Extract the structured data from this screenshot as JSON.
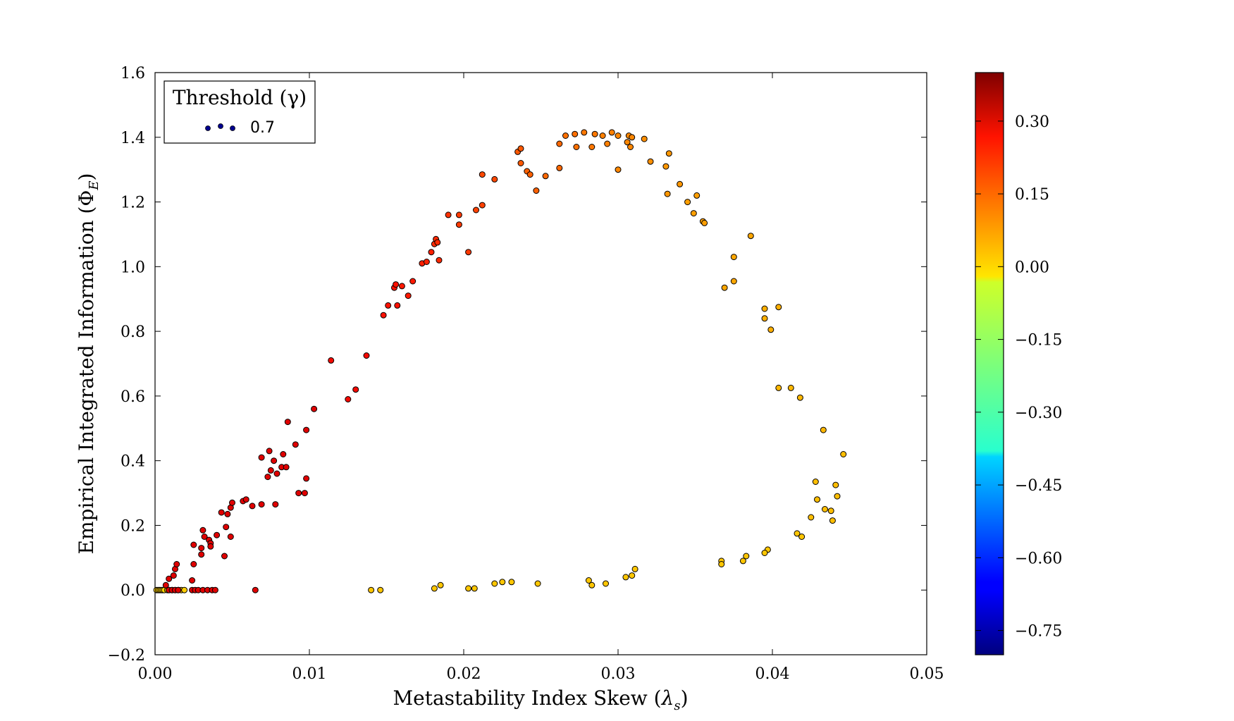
{
  "chart_data": {
    "type": "scatter",
    "xlabel_main": "Metastability Index Skew (",
    "xlabel_symbol": "λ",
    "xlabel_sub": "s",
    "xlabel_close": ")",
    "ylabel_main": "Empirical Integrated Information (",
    "ylabel_symbol": "Φ",
    "ylabel_sub": "E",
    "ylabel_close": ")",
    "xlim": [
      0.0,
      0.05
    ],
    "ylim": [
      -0.2,
      1.6
    ],
    "x_ticks": [
      "0.00",
      "0.01",
      "0.02",
      "0.03",
      "0.04",
      "0.05"
    ],
    "y_ticks": [
      "−0.2",
      "0.0",
      "0.2",
      "0.4",
      "0.6",
      "0.8",
      "1.0",
      "1.2",
      "1.4",
      "1.6"
    ],
    "grid": false,
    "legend": {
      "placement": "top-left",
      "title": "Threshold (γ)",
      "entries": [
        {
          "label": "0.7",
          "color": "#00008f"
        }
      ]
    },
    "colorbar": {
      "range": [
        -0.8,
        0.4
      ],
      "ticks": [
        "0.30",
        "0.15",
        "0.00",
        "−0.15",
        "−0.30",
        "−0.45",
        "−0.60",
        "−0.75"
      ],
      "tick_values": [
        0.3,
        0.15,
        0.0,
        -0.15,
        -0.3,
        -0.45,
        -0.6,
        -0.75
      ],
      "colormap": "jet"
    },
    "series": [
      {
        "points": [
          [
            0.0001,
            0.0,
            0.03
          ],
          [
            0.0002,
            0.0,
            0.02
          ],
          [
            0.0003,
            0.0,
            0.04
          ],
          [
            0.0004,
            0.0,
            0.01
          ],
          [
            0.0005,
            0.0,
            0.03
          ],
          [
            0.0006,
            0.0,
            0.02
          ],
          [
            0.0008,
            0.0,
            0.05
          ],
          [
            0.0009,
            0.0,
            0.02
          ],
          [
            0.0011,
            0.0,
            0.04
          ],
          [
            0.0013,
            0.0,
            0.03
          ],
          [
            0.0015,
            0.0,
            0.05
          ],
          [
            0.0017,
            0.0,
            0.04
          ],
          [
            0.0019,
            0.0,
            0.03
          ],
          [
            0.0009,
            0.0,
            0.3
          ],
          [
            0.0011,
            0.0,
            0.3
          ],
          [
            0.0013,
            0.0,
            0.3
          ],
          [
            0.0015,
            0.0,
            0.3
          ],
          [
            0.0024,
            0.0,
            0.3
          ],
          [
            0.0026,
            0.0,
            0.3
          ],
          [
            0.0028,
            0.0,
            0.3
          ],
          [
            0.0031,
            0.0,
            0.3
          ],
          [
            0.0034,
            0.0,
            0.3
          ],
          [
            0.0037,
            0.0,
            0.3
          ],
          [
            0.0039,
            0.0,
            0.3
          ],
          [
            0.0065,
            0.0,
            0.3
          ],
          [
            0.0007,
            0.015,
            0.3
          ],
          [
            0.0009,
            0.035,
            0.3
          ],
          [
            0.0012,
            0.045,
            0.3
          ],
          [
            0.0013,
            0.065,
            0.3
          ],
          [
            0.0014,
            0.08,
            0.3
          ],
          [
            0.0024,
            0.03,
            0.3
          ],
          [
            0.0025,
            0.08,
            0.3
          ],
          [
            0.0025,
            0.14,
            0.3
          ],
          [
            0.003,
            0.11,
            0.3
          ],
          [
            0.003,
            0.13,
            0.3
          ],
          [
            0.0031,
            0.185,
            0.3
          ],
          [
            0.0032,
            0.165,
            0.3
          ],
          [
            0.0035,
            0.155,
            0.3
          ],
          [
            0.0036,
            0.145,
            0.3
          ],
          [
            0.0036,
            0.135,
            0.3
          ],
          [
            0.004,
            0.17,
            0.3
          ],
          [
            0.0043,
            0.24,
            0.3
          ],
          [
            0.0045,
            0.105,
            0.3
          ],
          [
            0.0046,
            0.195,
            0.3
          ],
          [
            0.0047,
            0.235,
            0.3
          ],
          [
            0.0049,
            0.165,
            0.3
          ],
          [
            0.0049,
            0.255,
            0.3
          ],
          [
            0.005,
            0.27,
            0.3
          ],
          [
            0.0057,
            0.275,
            0.3
          ],
          [
            0.0059,
            0.28,
            0.3
          ],
          [
            0.0063,
            0.26,
            0.3
          ],
          [
            0.0069,
            0.265,
            0.3
          ],
          [
            0.0069,
            0.41,
            0.3
          ],
          [
            0.0073,
            0.35,
            0.3
          ],
          [
            0.0074,
            0.43,
            0.3
          ],
          [
            0.0075,
            0.37,
            0.3
          ],
          [
            0.0077,
            0.4,
            0.3
          ],
          [
            0.0078,
            0.265,
            0.3
          ],
          [
            0.0079,
            0.36,
            0.3
          ],
          [
            0.0082,
            0.38,
            0.3
          ],
          [
            0.0083,
            0.42,
            0.3
          ],
          [
            0.0085,
            0.38,
            0.3
          ],
          [
            0.0086,
            0.52,
            0.3
          ],
          [
            0.0091,
            0.45,
            0.3
          ],
          [
            0.0093,
            0.3,
            0.3
          ],
          [
            0.0097,
            0.3,
            0.3
          ],
          [
            0.0098,
            0.345,
            0.3
          ],
          [
            0.0098,
            0.495,
            0.3
          ],
          [
            0.0103,
            0.56,
            0.3
          ],
          [
            0.0114,
            0.71,
            0.28
          ],
          [
            0.0125,
            0.59,
            0.28
          ],
          [
            0.013,
            0.62,
            0.28
          ],
          [
            0.0137,
            0.725,
            0.28
          ],
          [
            0.0148,
            0.85,
            0.27
          ],
          [
            0.0151,
            0.88,
            0.27
          ],
          [
            0.0155,
            0.935,
            0.27
          ],
          [
            0.0156,
            0.945,
            0.27
          ],
          [
            0.0157,
            0.88,
            0.27
          ],
          [
            0.016,
            0.94,
            0.26
          ],
          [
            0.0164,
            0.91,
            0.26
          ],
          [
            0.0167,
            0.955,
            0.26
          ],
          [
            0.0173,
            1.01,
            0.25
          ],
          [
            0.0176,
            1.015,
            0.25
          ],
          [
            0.0179,
            1.045,
            0.25
          ],
          [
            0.0181,
            1.07,
            0.24
          ],
          [
            0.0182,
            1.085,
            0.24
          ],
          [
            0.0183,
            1.075,
            0.24
          ],
          [
            0.0184,
            1.02,
            0.24
          ],
          [
            0.019,
            1.16,
            0.23
          ],
          [
            0.0197,
            1.13,
            0.22
          ],
          [
            0.0197,
            1.16,
            0.22
          ],
          [
            0.0203,
            1.045,
            0.22
          ],
          [
            0.0208,
            1.175,
            0.21
          ],
          [
            0.0212,
            1.19,
            0.21
          ],
          [
            0.0212,
            1.285,
            0.2
          ],
          [
            0.022,
            1.27,
            0.2
          ],
          [
            0.0235,
            1.355,
            0.18
          ],
          [
            0.0237,
            1.365,
            0.18
          ],
          [
            0.0237,
            1.32,
            0.18
          ],
          [
            0.0241,
            1.295,
            0.17
          ],
          [
            0.0243,
            1.285,
            0.17
          ],
          [
            0.0247,
            1.235,
            0.17
          ],
          [
            0.0253,
            1.28,
            0.16
          ],
          [
            0.0262,
            1.305,
            0.16
          ],
          [
            0.0262,
            1.38,
            0.16
          ],
          [
            0.0266,
            1.405,
            0.15
          ],
          [
            0.0272,
            1.41,
            0.15
          ],
          [
            0.0273,
            1.37,
            0.15
          ],
          [
            0.0278,
            1.415,
            0.14
          ],
          [
            0.0283,
            1.37,
            0.14
          ],
          [
            0.0285,
            1.41,
            0.14
          ],
          [
            0.029,
            1.405,
            0.13
          ],
          [
            0.0293,
            1.38,
            0.13
          ],
          [
            0.0296,
            1.415,
            0.13
          ],
          [
            0.03,
            1.3,
            0.12
          ],
          [
            0.03,
            1.405,
            0.12
          ],
          [
            0.0306,
            1.385,
            0.12
          ],
          [
            0.0307,
            1.405,
            0.12
          ],
          [
            0.0308,
            1.37,
            0.12
          ],
          [
            0.0309,
            1.4,
            0.12
          ],
          [
            0.0317,
            1.395,
            0.11
          ],
          [
            0.0321,
            1.325,
            0.11
          ],
          [
            0.0331,
            1.31,
            0.1
          ],
          [
            0.0332,
            1.225,
            0.1
          ],
          [
            0.0333,
            1.35,
            0.1
          ],
          [
            0.034,
            1.255,
            0.1
          ],
          [
            0.0345,
            1.2,
            0.09
          ],
          [
            0.0349,
            1.165,
            0.09
          ],
          [
            0.0351,
            1.22,
            0.09
          ],
          [
            0.0355,
            1.14,
            0.09
          ],
          [
            0.0356,
            1.135,
            0.09
          ],
          [
            0.0369,
            0.935,
            0.08
          ],
          [
            0.0375,
            1.03,
            0.08
          ],
          [
            0.0375,
            0.955,
            0.08
          ],
          [
            0.0386,
            1.095,
            0.08
          ],
          [
            0.0395,
            0.87,
            0.07
          ],
          [
            0.0395,
            0.84,
            0.07
          ],
          [
            0.0399,
            0.805,
            0.07
          ],
          [
            0.0404,
            0.875,
            0.07
          ],
          [
            0.0404,
            0.625,
            0.06
          ],
          [
            0.0412,
            0.625,
            0.06
          ],
          [
            0.0418,
            0.595,
            0.06
          ],
          [
            0.0433,
            0.495,
            0.06
          ],
          [
            0.0446,
            0.42,
            0.05
          ],
          [
            0.0428,
            0.335,
            0.05
          ],
          [
            0.0441,
            0.325,
            0.05
          ],
          [
            0.0429,
            0.28,
            0.05
          ],
          [
            0.0442,
            0.29,
            0.05
          ],
          [
            0.0434,
            0.25,
            0.05
          ],
          [
            0.0438,
            0.245,
            0.05
          ],
          [
            0.0425,
            0.225,
            0.05
          ],
          [
            0.0439,
            0.215,
            0.05
          ],
          [
            0.0416,
            0.175,
            0.04
          ],
          [
            0.0419,
            0.165,
            0.04
          ],
          [
            0.0397,
            0.125,
            0.04
          ],
          [
            0.0395,
            0.115,
            0.04
          ],
          [
            0.0383,
            0.105,
            0.04
          ],
          [
            0.0381,
            0.09,
            0.04
          ],
          [
            0.0367,
            0.09,
            0.04
          ],
          [
            0.0367,
            0.08,
            0.04
          ],
          [
            0.0311,
            0.065,
            0.04
          ],
          [
            0.0309,
            0.045,
            0.04
          ],
          [
            0.0305,
            0.04,
            0.04
          ],
          [
            0.0292,
            0.02,
            0.04
          ],
          [
            0.0283,
            0.015,
            0.04
          ],
          [
            0.0281,
            0.03,
            0.04
          ],
          [
            0.0248,
            0.02,
            0.04
          ],
          [
            0.0231,
            0.025,
            0.04
          ],
          [
            0.0225,
            0.025,
            0.04
          ],
          [
            0.022,
            0.02,
            0.04
          ],
          [
            0.0207,
            0.005,
            0.04
          ],
          [
            0.0203,
            0.005,
            0.04
          ],
          [
            0.0185,
            0.015,
            0.04
          ],
          [
            0.0181,
            0.005,
            0.04
          ],
          [
            0.0146,
            0.0,
            0.04
          ],
          [
            0.014,
            0.0,
            0.04
          ]
        ]
      }
    ]
  }
}
